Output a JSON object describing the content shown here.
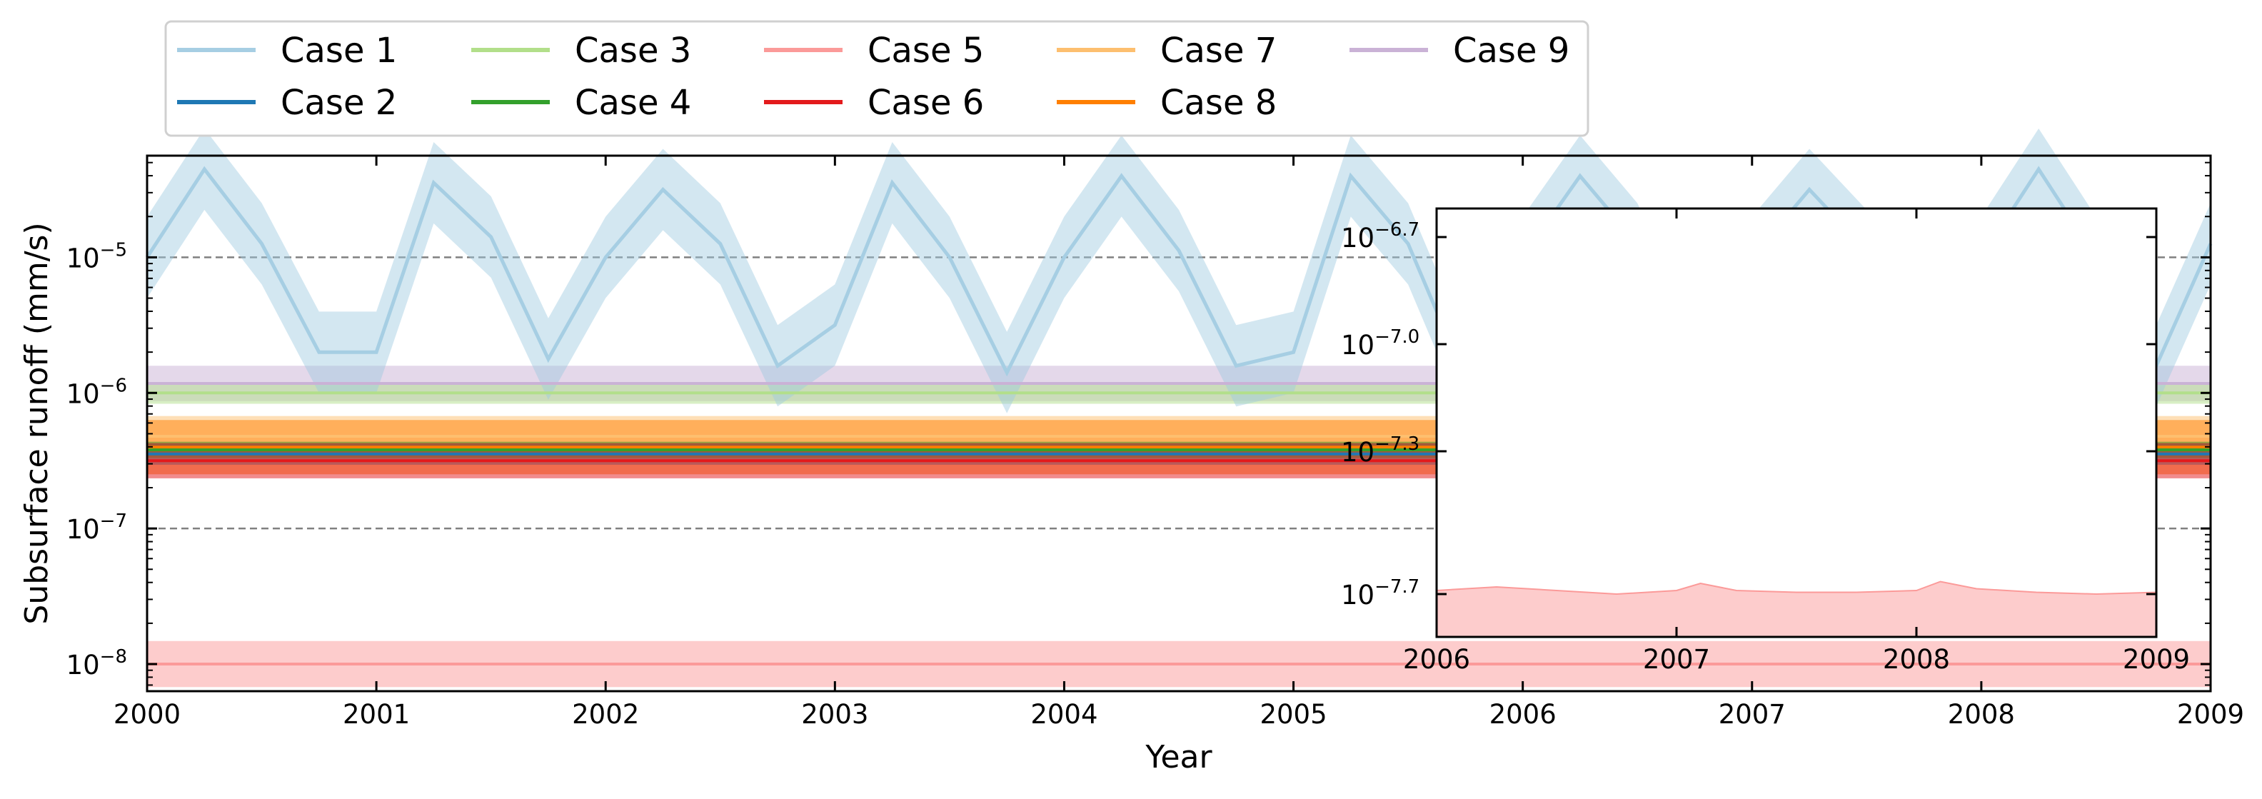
{
  "chart_data": [
    {
      "type": "line",
      "title": "",
      "xlabel": "Year",
      "ylabel": "Subsurface runoff (mm/s)",
      "yscale": "log",
      "xlim": [
        2000,
        2009
      ],
      "ylim_log10": [
        -8.2,
        -4.25
      ],
      "x_ticks": [
        "2000",
        "2001",
        "2002",
        "2003",
        "2004",
        "2005",
        "2006",
        "2007",
        "2008",
        "2009"
      ],
      "y_ticks": [
        {
          "exp": -8,
          "label": "−8"
        },
        {
          "exp": -7,
          "label": "−7"
        },
        {
          "exp": -6,
          "label": "−6"
        },
        {
          "exp": -5,
          "label": "−5"
        }
      ],
      "y_tick_base": "10",
      "grid": "dashed horizontal lines at 10^-7, 10^-6, 10^-5",
      "legend_position": "top, above plot, 5 columns",
      "series": [
        {
          "name": "Case 1",
          "color": "#a6cee3",
          "band_color": "#9ecae1",
          "x": [
            2000.0,
            2000.25,
            2000.5,
            2000.75,
            2001.0,
            2001.25,
            2001.5,
            2001.75,
            2002.0,
            2002.25,
            2002.5,
            2002.75,
            2003.0,
            2003.25,
            2003.5,
            2003.75,
            2004.0,
            2004.25,
            2004.5,
            2004.75,
            2005.0,
            2005.25,
            2005.5,
            2005.75,
            2006.0,
            2006.25,
            2006.5,
            2006.75,
            2007.0,
            2007.25,
            2007.5,
            2007.75,
            2008.0,
            2008.25,
            2008.5,
            2008.75,
            2009.0
          ],
          "log10_values": [
            -5.0,
            -4.35,
            -4.9,
            -5.7,
            -5.7,
            -4.45,
            -4.85,
            -5.75,
            -5.0,
            -4.5,
            -4.9,
            -5.8,
            -5.5,
            -4.45,
            -5.0,
            -5.85,
            -5.0,
            -4.4,
            -4.95,
            -5.8,
            -5.7,
            -4.4,
            -4.9,
            -5.9,
            -5.0,
            -4.4,
            -4.9,
            -5.8,
            -5.0,
            -4.5,
            -4.95,
            -5.85,
            -5.0,
            -4.35,
            -5.0,
            -5.85,
            -4.9
          ],
          "log10_band": [
            0.3,
            0.3
          ]
        },
        {
          "name": "Case 2",
          "color": "#1f78b4",
          "log10_value": -6.45,
          "log10_band": [
            0.08,
            0.08
          ]
        },
        {
          "name": "Case 3",
          "color": "#b2df8a",
          "log10_value": -6.0,
          "log10_band": [
            0.08,
            0.08
          ]
        },
        {
          "name": "Case 4",
          "color": "#33a02c",
          "log10_value": -6.42,
          "log10_band": [
            0.06,
            0.06
          ]
        },
        {
          "name": "Case 5",
          "color": "#fb9a99",
          "log10_value": -8.0,
          "log10_band": [
            0.17,
            0.17
          ]
        },
        {
          "name": "Case 6",
          "color": "#e31a1c",
          "log10_value": -6.5,
          "log10_band": [
            0.13,
            0.13
          ]
        },
        {
          "name": "Case 7",
          "color": "#fdbf6f",
          "log10_value": -6.32,
          "log10_band": [
            0.15,
            0.15
          ]
        },
        {
          "name": "Case 8",
          "color": "#ff7f00",
          "log10_value": -6.4,
          "log10_band": [
            0.2,
            0.2
          ]
        },
        {
          "name": "Case 9",
          "color": "#cab2d6",
          "log10_value": -5.93,
          "log10_band": [
            0.13,
            0.13
          ]
        }
      ]
    },
    {
      "type": "area",
      "title": "",
      "placement": "inset, right side",
      "yscale": "log",
      "xlim": [
        2006,
        2009
      ],
      "ylim_log10": [
        -7.82,
        -6.62
      ],
      "x_ticks": [
        "2006",
        "2007",
        "2008",
        "2009"
      ],
      "y_ticks": [
        {
          "exp": -6.7,
          "label": "−6.7"
        },
        {
          "exp": -7.0,
          "label": "−7.0"
        },
        {
          "exp": -7.3,
          "label": "−7.3"
        },
        {
          "exp": -7.7,
          "label": "−7.7"
        }
      ],
      "y_tick_base": "10",
      "series": [
        {
          "name": "Case 5",
          "color": "#fb9a99",
          "x": [
            2006.0,
            2006.25,
            2006.5,
            2006.75,
            2007.0,
            2007.1,
            2007.25,
            2007.5,
            2007.75,
            2008.0,
            2008.1,
            2008.25,
            2008.5,
            2008.75,
            2009.0
          ],
          "log10_upper": [
            -7.69,
            -7.68,
            -7.69,
            -7.7,
            -7.69,
            -7.67,
            -7.69,
            -7.695,
            -7.695,
            -7.69,
            -7.665,
            -7.685,
            -7.695,
            -7.7,
            -7.695
          ]
        }
      ]
    }
  ],
  "legend": {
    "items": [
      {
        "label": "Case 1",
        "color": "#a6cee3"
      },
      {
        "label": "Case 2",
        "color": "#1f78b4"
      },
      {
        "label": "Case 3",
        "color": "#b2df8a"
      },
      {
        "label": "Case 4",
        "color": "#33a02c"
      },
      {
        "label": "Case 5",
        "color": "#fb9a99"
      },
      {
        "label": "Case 6",
        "color": "#e31a1c"
      },
      {
        "label": "Case 7",
        "color": "#fdbf6f"
      },
      {
        "label": "Case 8",
        "color": "#ff7f00"
      },
      {
        "label": "Case 9",
        "color": "#cab2d6"
      }
    ]
  }
}
